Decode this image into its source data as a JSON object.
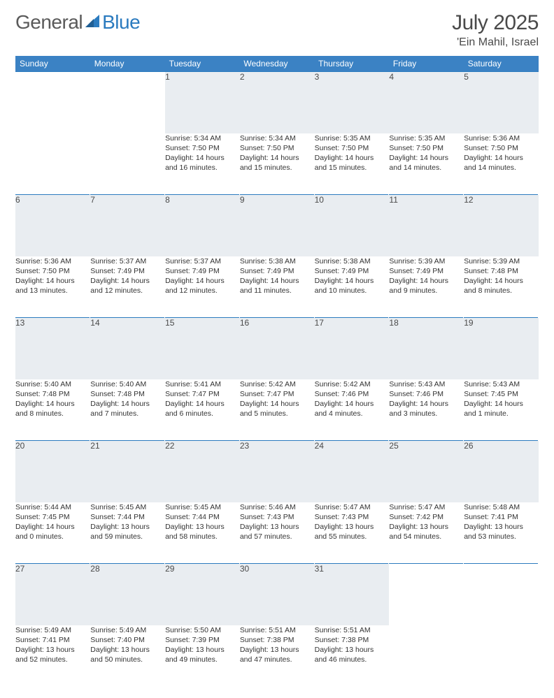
{
  "brand": {
    "part1": "General",
    "part2": "Blue"
  },
  "title": {
    "month": "July 2025",
    "location": "'Ein Mahil, Israel"
  },
  "colors": {
    "header_bg": "#3b82c4",
    "header_text": "#ffffff",
    "daynum_bg": "#e9edf1",
    "row_divider": "#2b7bbf",
    "text": "#333333",
    "brand_gray": "#5a5a5a",
    "brand_blue": "#2b7bbf"
  },
  "weekdays": [
    "Sunday",
    "Monday",
    "Tuesday",
    "Wednesday",
    "Thursday",
    "Friday",
    "Saturday"
  ],
  "layout": {
    "first_day_column": 2,
    "days_in_month": 31
  },
  "days": {
    "1": {
      "sunrise": "Sunrise: 5:34 AM",
      "sunset": "Sunset: 7:50 PM",
      "daylight1": "Daylight: 14 hours",
      "daylight2": "and 16 minutes."
    },
    "2": {
      "sunrise": "Sunrise: 5:34 AM",
      "sunset": "Sunset: 7:50 PM",
      "daylight1": "Daylight: 14 hours",
      "daylight2": "and 15 minutes."
    },
    "3": {
      "sunrise": "Sunrise: 5:35 AM",
      "sunset": "Sunset: 7:50 PM",
      "daylight1": "Daylight: 14 hours",
      "daylight2": "and 15 minutes."
    },
    "4": {
      "sunrise": "Sunrise: 5:35 AM",
      "sunset": "Sunset: 7:50 PM",
      "daylight1": "Daylight: 14 hours",
      "daylight2": "and 14 minutes."
    },
    "5": {
      "sunrise": "Sunrise: 5:36 AM",
      "sunset": "Sunset: 7:50 PM",
      "daylight1": "Daylight: 14 hours",
      "daylight2": "and 14 minutes."
    },
    "6": {
      "sunrise": "Sunrise: 5:36 AM",
      "sunset": "Sunset: 7:50 PM",
      "daylight1": "Daylight: 14 hours",
      "daylight2": "and 13 minutes."
    },
    "7": {
      "sunrise": "Sunrise: 5:37 AM",
      "sunset": "Sunset: 7:49 PM",
      "daylight1": "Daylight: 14 hours",
      "daylight2": "and 12 minutes."
    },
    "8": {
      "sunrise": "Sunrise: 5:37 AM",
      "sunset": "Sunset: 7:49 PM",
      "daylight1": "Daylight: 14 hours",
      "daylight2": "and 12 minutes."
    },
    "9": {
      "sunrise": "Sunrise: 5:38 AM",
      "sunset": "Sunset: 7:49 PM",
      "daylight1": "Daylight: 14 hours",
      "daylight2": "and 11 minutes."
    },
    "10": {
      "sunrise": "Sunrise: 5:38 AM",
      "sunset": "Sunset: 7:49 PM",
      "daylight1": "Daylight: 14 hours",
      "daylight2": "and 10 minutes."
    },
    "11": {
      "sunrise": "Sunrise: 5:39 AM",
      "sunset": "Sunset: 7:49 PM",
      "daylight1": "Daylight: 14 hours",
      "daylight2": "and 9 minutes."
    },
    "12": {
      "sunrise": "Sunrise: 5:39 AM",
      "sunset": "Sunset: 7:48 PM",
      "daylight1": "Daylight: 14 hours",
      "daylight2": "and 8 minutes."
    },
    "13": {
      "sunrise": "Sunrise: 5:40 AM",
      "sunset": "Sunset: 7:48 PM",
      "daylight1": "Daylight: 14 hours",
      "daylight2": "and 8 minutes."
    },
    "14": {
      "sunrise": "Sunrise: 5:40 AM",
      "sunset": "Sunset: 7:48 PM",
      "daylight1": "Daylight: 14 hours",
      "daylight2": "and 7 minutes."
    },
    "15": {
      "sunrise": "Sunrise: 5:41 AM",
      "sunset": "Sunset: 7:47 PM",
      "daylight1": "Daylight: 14 hours",
      "daylight2": "and 6 minutes."
    },
    "16": {
      "sunrise": "Sunrise: 5:42 AM",
      "sunset": "Sunset: 7:47 PM",
      "daylight1": "Daylight: 14 hours",
      "daylight2": "and 5 minutes."
    },
    "17": {
      "sunrise": "Sunrise: 5:42 AM",
      "sunset": "Sunset: 7:46 PM",
      "daylight1": "Daylight: 14 hours",
      "daylight2": "and 4 minutes."
    },
    "18": {
      "sunrise": "Sunrise: 5:43 AM",
      "sunset": "Sunset: 7:46 PM",
      "daylight1": "Daylight: 14 hours",
      "daylight2": "and 3 minutes."
    },
    "19": {
      "sunrise": "Sunrise: 5:43 AM",
      "sunset": "Sunset: 7:45 PM",
      "daylight1": "Daylight: 14 hours",
      "daylight2": "and 1 minute."
    },
    "20": {
      "sunrise": "Sunrise: 5:44 AM",
      "sunset": "Sunset: 7:45 PM",
      "daylight1": "Daylight: 14 hours",
      "daylight2": "and 0 minutes."
    },
    "21": {
      "sunrise": "Sunrise: 5:45 AM",
      "sunset": "Sunset: 7:44 PM",
      "daylight1": "Daylight: 13 hours",
      "daylight2": "and 59 minutes."
    },
    "22": {
      "sunrise": "Sunrise: 5:45 AM",
      "sunset": "Sunset: 7:44 PM",
      "daylight1": "Daylight: 13 hours",
      "daylight2": "and 58 minutes."
    },
    "23": {
      "sunrise": "Sunrise: 5:46 AM",
      "sunset": "Sunset: 7:43 PM",
      "daylight1": "Daylight: 13 hours",
      "daylight2": "and 57 minutes."
    },
    "24": {
      "sunrise": "Sunrise: 5:47 AM",
      "sunset": "Sunset: 7:43 PM",
      "daylight1": "Daylight: 13 hours",
      "daylight2": "and 55 minutes."
    },
    "25": {
      "sunrise": "Sunrise: 5:47 AM",
      "sunset": "Sunset: 7:42 PM",
      "daylight1": "Daylight: 13 hours",
      "daylight2": "and 54 minutes."
    },
    "26": {
      "sunrise": "Sunrise: 5:48 AM",
      "sunset": "Sunset: 7:41 PM",
      "daylight1": "Daylight: 13 hours",
      "daylight2": "and 53 minutes."
    },
    "27": {
      "sunrise": "Sunrise: 5:49 AM",
      "sunset": "Sunset: 7:41 PM",
      "daylight1": "Daylight: 13 hours",
      "daylight2": "and 52 minutes."
    },
    "28": {
      "sunrise": "Sunrise: 5:49 AM",
      "sunset": "Sunset: 7:40 PM",
      "daylight1": "Daylight: 13 hours",
      "daylight2": "and 50 minutes."
    },
    "29": {
      "sunrise": "Sunrise: 5:50 AM",
      "sunset": "Sunset: 7:39 PM",
      "daylight1": "Daylight: 13 hours",
      "daylight2": "and 49 minutes."
    },
    "30": {
      "sunrise": "Sunrise: 5:51 AM",
      "sunset": "Sunset: 7:38 PM",
      "daylight1": "Daylight: 13 hours",
      "daylight2": "and 47 minutes."
    },
    "31": {
      "sunrise": "Sunrise: 5:51 AM",
      "sunset": "Sunset: 7:38 PM",
      "daylight1": "Daylight: 13 hours",
      "daylight2": "and 46 minutes."
    }
  }
}
